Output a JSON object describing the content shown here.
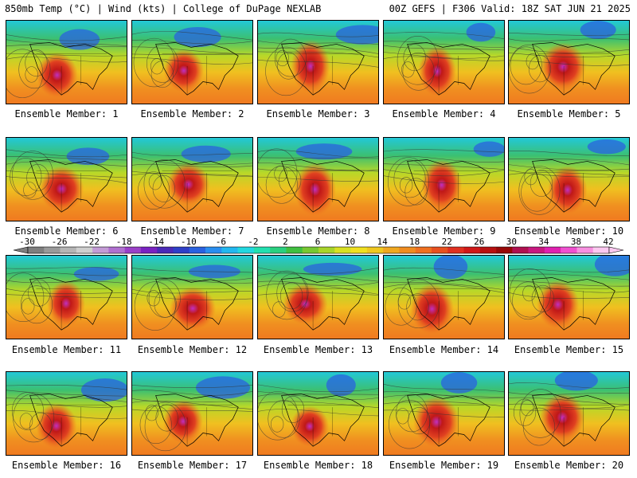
{
  "header": {
    "left_text": "850mb Temp (°C) | Wind (kts) | College of DuPage NEXLAB",
    "right_text": "00Z GEFS | F306 Valid: 18Z SAT JUN 21 2025"
  },
  "panels": [
    {
      "label": "Ensemble Member: 1"
    },
    {
      "label": "Ensemble Member: 2"
    },
    {
      "label": "Ensemble Member: 3"
    },
    {
      "label": "Ensemble Member: 4"
    },
    {
      "label": "Ensemble Member: 5"
    },
    {
      "label": "Ensemble Member: 6"
    },
    {
      "label": "Ensemble Member: 7"
    },
    {
      "label": "Ensemble Member: 8"
    },
    {
      "label": "Ensemble Member: 9"
    },
    {
      "label": "Ensemble Member: 10"
    },
    {
      "label": "Ensemble Member: 11"
    },
    {
      "label": "Ensemble Member: 12"
    },
    {
      "label": "Ensemble Member: 13"
    },
    {
      "label": "Ensemble Member: 14"
    },
    {
      "label": "Ensemble Member: 15"
    },
    {
      "label": "Ensemble Member: 16"
    },
    {
      "label": "Ensemble Member: 17"
    },
    {
      "label": "Ensemble Member: 18"
    },
    {
      "label": "Ensemble Member: 19"
    },
    {
      "label": "Ensemble Member: 20"
    }
  ],
  "colorbar": {
    "labels": [
      "-30",
      "-26",
      "-22",
      "-18",
      "-14",
      "-10",
      "-6",
      "-2",
      "2",
      "6",
      "10",
      "14",
      "18",
      "22",
      "26",
      "30",
      "34",
      "38",
      "42"
    ],
    "colors": [
      "#7f7f7f",
      "#9a9a9a",
      "#b5b5b5",
      "#cfcfcf",
      "#c49bd6",
      "#b070d0",
      "#9a3fc8",
      "#7a22c2",
      "#4a2ab8",
      "#2f3fc8",
      "#2a62e0",
      "#2a8ef0",
      "#22b8f0",
      "#22d8e0",
      "#22e0b0",
      "#2ad080",
      "#40c040",
      "#78c832",
      "#a8d42a",
      "#d8e022",
      "#f0e020",
      "#f0c820",
      "#f0a820",
      "#f08c20",
      "#f07020",
      "#e85020",
      "#e03020",
      "#d01818",
      "#b81010",
      "#980808",
      "#b01050",
      "#c81880",
      "#e020b0",
      "#f050d0",
      "#f890e0",
      "#fcc8f0"
    ]
  }
}
